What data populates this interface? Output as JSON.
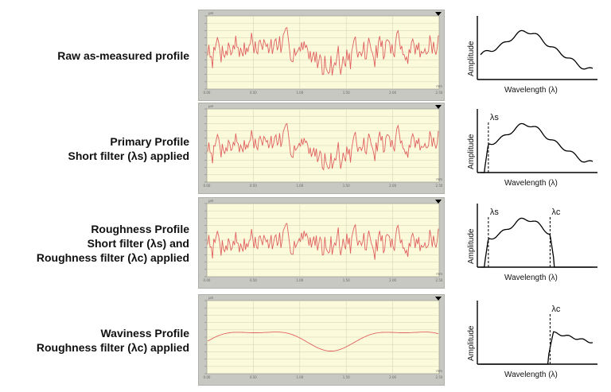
{
  "colors": {
    "panel_frame": "#c8c8c2",
    "panel_bg": "#fbfbdc",
    "grid": "#d9d9b8",
    "trace": "#e0605f",
    "spectrum": "#000000"
  },
  "rows": [
    {
      "id": "raw",
      "lines": [
        "Raw as-measured profile"
      ],
      "profile": "raw",
      "panel_unit": "µm",
      "x_ticks": [
        "0.00",
        "0.50",
        "1.00",
        "1.50",
        "2.00",
        "2.50"
      ],
      "x_unit": "mm",
      "spectrum": {
        "ylabel": "Amplitude",
        "xlabel": "Wavelength (λ)",
        "markers": []
      }
    },
    {
      "id": "primary",
      "lines": [
        "Primary Profile",
        "Short filter (λs) applied"
      ],
      "profile": "primary",
      "panel_unit": "µm",
      "x_ticks": [
        "0.00",
        "0.50",
        "1.00",
        "1.50",
        "2.00",
        "2.50"
      ],
      "x_unit": "mm",
      "spectrum": {
        "ylabel": "Amplitude",
        "xlabel": "Wavelength (λ)",
        "markers": [
          {
            "label": "λs",
            "at": 0.07
          }
        ]
      }
    },
    {
      "id": "roughness",
      "lines": [
        "Roughness Profile",
        "Short filter (λs) and",
        "Roughness filter (λc) applied"
      ],
      "profile": "roughness",
      "panel_unit": "µm",
      "x_ticks": [
        "0.00",
        "0.50",
        "1.00",
        "1.50",
        "2.00",
        "2.50"
      ],
      "x_unit": "mm",
      "spectrum": {
        "ylabel": "Amplitude",
        "xlabel": "Wavelength (λ)",
        "markers": [
          {
            "label": "λs",
            "at": 0.07
          },
          {
            "label": "λc",
            "at": 0.62
          }
        ]
      }
    },
    {
      "id": "waviness",
      "lines": [
        "Waviness Profile",
        "Roughness filter (λc) applied"
      ],
      "profile": "waviness",
      "panel_unit": "µm",
      "x_ticks": [
        "0.00",
        "0.50",
        "1.00",
        "1.50",
        "2.00",
        "2.50"
      ],
      "x_unit": "mm",
      "spectrum": {
        "ylabel": "Amplitude",
        "xlabel": "Wavelength (λ)",
        "markers": [
          {
            "label": "λc",
            "at": 0.62
          }
        ]
      }
    }
  ]
}
